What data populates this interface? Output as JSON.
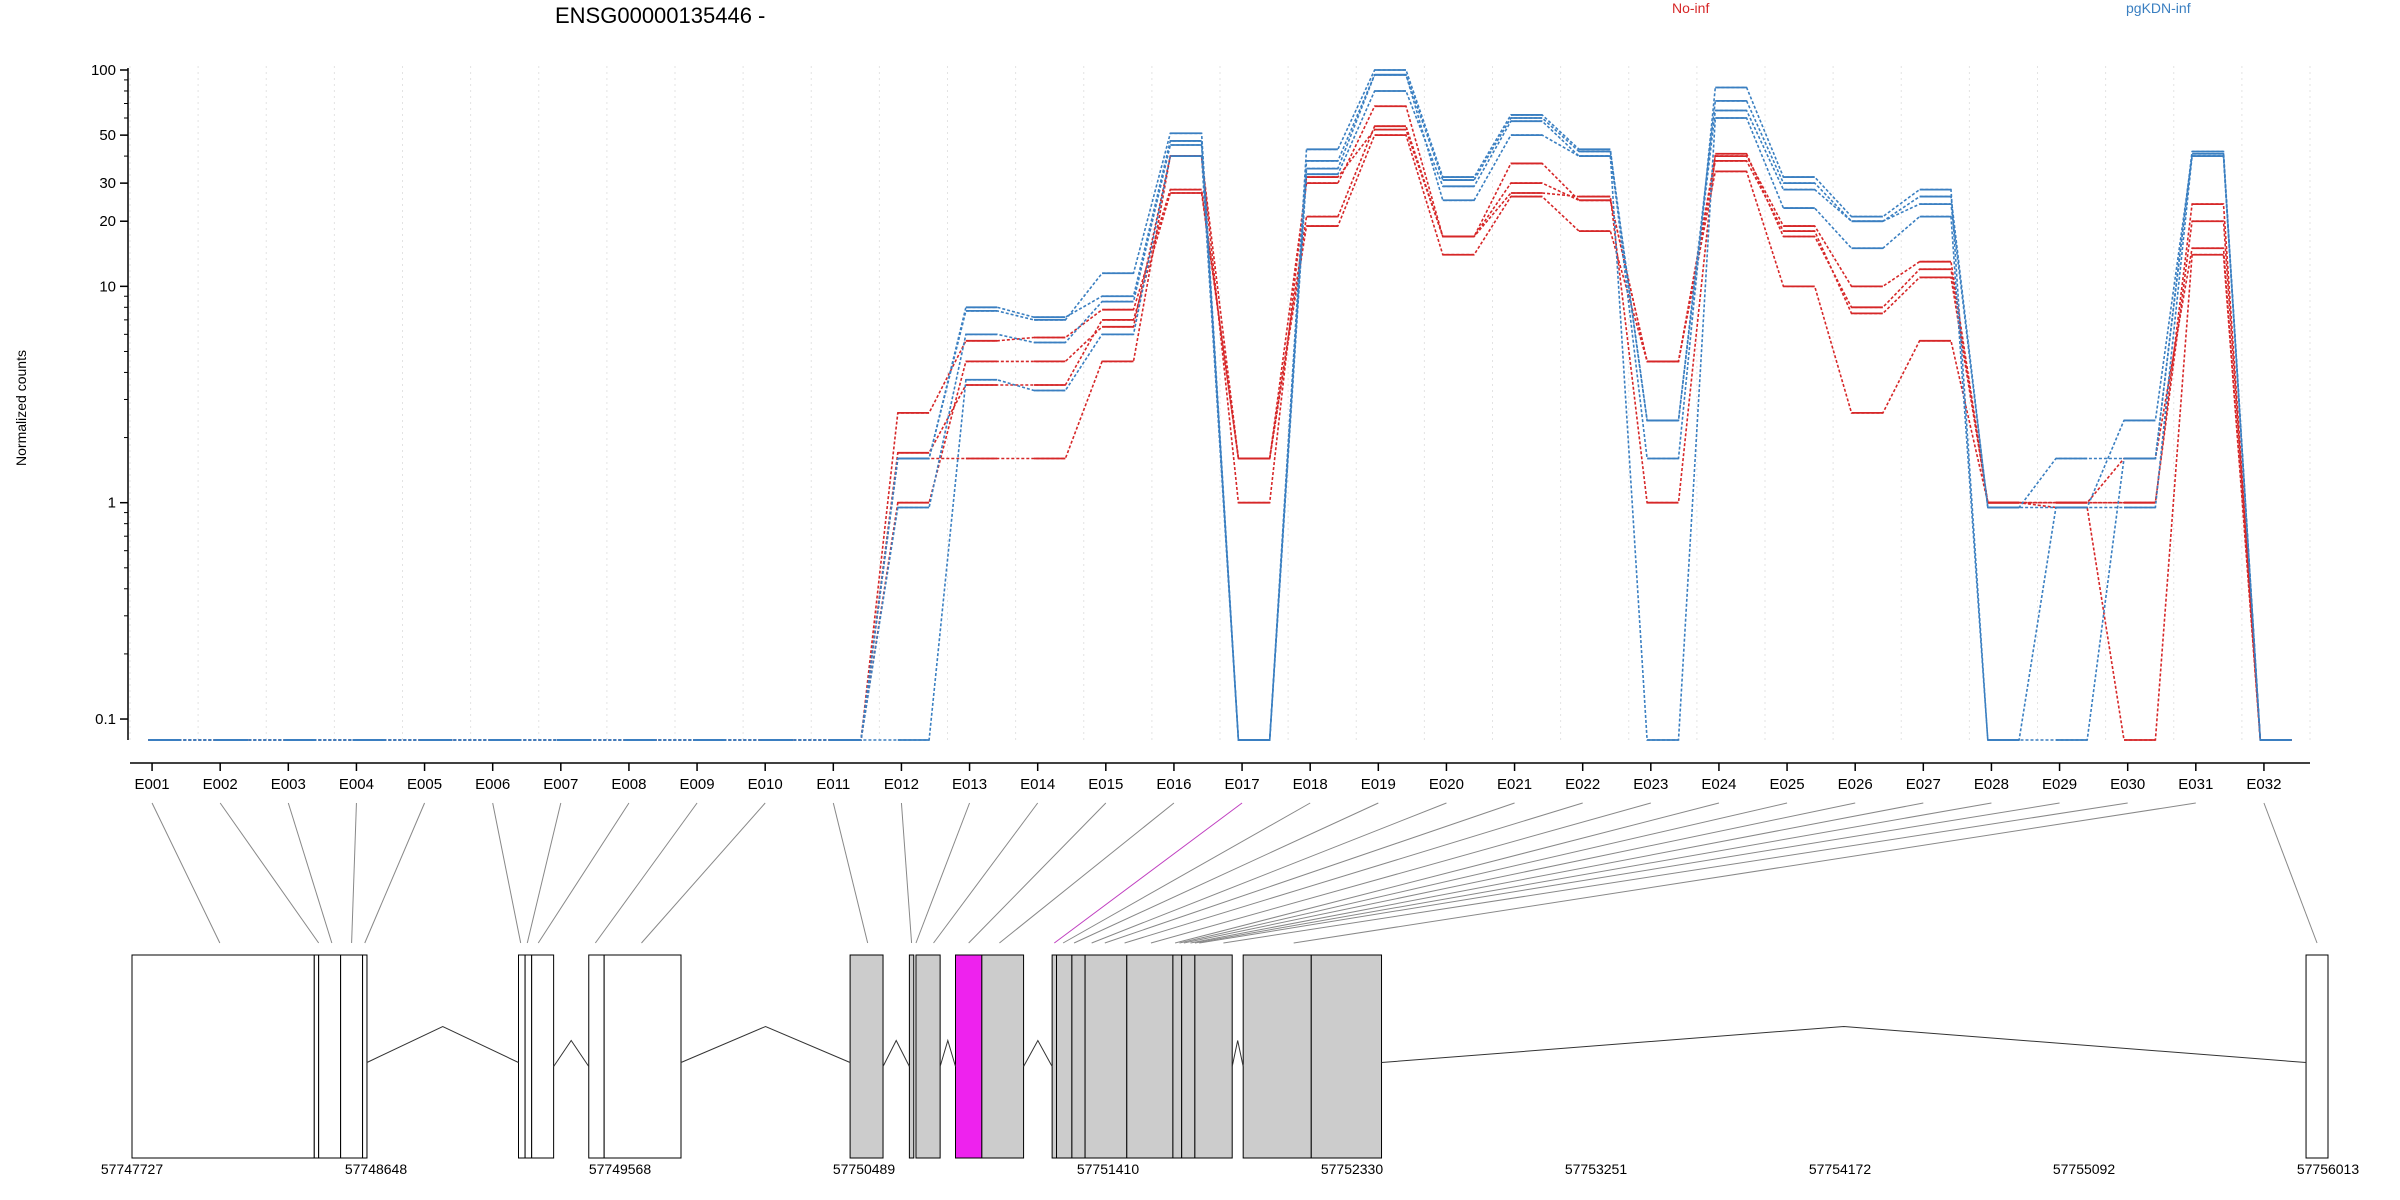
{
  "chart_data": {
    "type": "line",
    "title": "ENSG00000135446 -",
    "ylabel": "Normalized counts",
    "xlabel": "",
    "y_scale": "log",
    "ylim": [
      0.08,
      100
    ],
    "grid": "vertical dotted",
    "y_ticks": [
      {
        "value": 0.1,
        "label": "0.1"
      },
      {
        "value": 1,
        "label": "1"
      },
      {
        "value": 10,
        "label": "10"
      },
      {
        "value": 20,
        "label": "20"
      },
      {
        "value": 30,
        "label": "30"
      },
      {
        "value": 50,
        "label": "50"
      },
      {
        "value": 100,
        "label": "100"
      }
    ],
    "legend": [
      {
        "name": "No-inf",
        "color": "#d62728"
      },
      {
        "name": "pgKDN-inf",
        "color": "#3a7fc1"
      }
    ],
    "categories": [
      "E001",
      "E002",
      "E003",
      "E004",
      "E005",
      "E006",
      "E007",
      "E008",
      "E009",
      "E010",
      "E011",
      "E012",
      "E013",
      "E014",
      "E015",
      "E016",
      "E017",
      "E018",
      "E019",
      "E020",
      "E021",
      "E022",
      "E023",
      "E024",
      "E025",
      "E026",
      "E027",
      "E028",
      "E029",
      "E030",
      "E031",
      "E032"
    ],
    "highlight_category": "E017",
    "series": [
      {
        "group": "No-inf",
        "color": "#d62728",
        "values": [
          0.08,
          0.08,
          0.08,
          0.08,
          0.08,
          0.08,
          0.08,
          0.08,
          0.08,
          0.08,
          0.08,
          2.6,
          5.6,
          5.8,
          7.8,
          28,
          1.6,
          30,
          68,
          17,
          37,
          25,
          4.5,
          40,
          19,
          10,
          13,
          1,
          1,
          1,
          24,
          0.08
        ]
      },
      {
        "group": "No-inf",
        "color": "#d62728",
        "values": [
          0.08,
          0.08,
          0.08,
          0.08,
          0.08,
          0.08,
          0.08,
          0.08,
          0.08,
          0.08,
          0.08,
          1.7,
          3.5,
          3.5,
          7.0,
          27,
          1.6,
          21,
          55,
          17,
          30,
          25,
          4.5,
          38,
          18,
          7.5,
          11,
          1,
          1,
          1,
          20,
          0.08
        ]
      },
      {
        "group": "No-inf",
        "color": "#d62728",
        "values": [
          0.08,
          0.08,
          0.08,
          0.08,
          0.08,
          0.08,
          0.08,
          0.08,
          0.08,
          0.08,
          0.08,
          1.0,
          4.5,
          4.5,
          6.5,
          40,
          1.0,
          32,
          53,
          17,
          27,
          26,
          1.0,
          41,
          17,
          8,
          12,
          1,
          1,
          1.6,
          15,
          0.08
        ]
      },
      {
        "group": "No-inf",
        "color": "#d62728",
        "values": [
          0.08,
          0.08,
          0.08,
          0.08,
          0.08,
          0.08,
          0.08,
          0.08,
          0.08,
          0.08,
          0.08,
          1.6,
          1.6,
          1.6,
          4.5,
          40,
          1.6,
          19,
          50,
          14,
          26,
          18,
          4.5,
          34,
          10,
          2.6,
          5.6,
          1,
          0.95,
          0.08,
          14,
          0.08
        ]
      },
      {
        "group": "pgKDN-inf",
        "color": "#3a7fc1",
        "values": [
          0.08,
          0.08,
          0.08,
          0.08,
          0.08,
          0.08,
          0.08,
          0.08,
          0.08,
          0.08,
          0.08,
          1.6,
          7.7,
          7.0,
          11.5,
          51,
          0.08,
          43,
          100,
          32,
          62,
          43,
          1.6,
          83,
          32,
          21,
          28,
          0.08,
          0.08,
          1.6,
          41,
          0.08
        ]
      },
      {
        "group": "pgKDN-inf",
        "color": "#3a7fc1",
        "values": [
          0.08,
          0.08,
          0.08,
          0.08,
          0.08,
          0.08,
          0.08,
          0.08,
          0.08,
          0.08,
          0.08,
          1.6,
          8,
          7.2,
          9,
          47,
          0.08,
          38,
          95,
          31,
          60,
          42,
          2.4,
          72,
          30,
          20,
          26,
          0.95,
          1.6,
          1.6,
          42,
          0.08
        ]
      },
      {
        "group": "pgKDN-inf",
        "color": "#3a7fc1",
        "values": [
          0.08,
          0.08,
          0.08,
          0.08,
          0.08,
          0.08,
          0.08,
          0.08,
          0.08,
          0.08,
          0.08,
          0.95,
          6,
          5.5,
          8.5,
          45,
          0.08,
          33,
          80,
          29,
          58,
          40,
          2.4,
          65,
          28,
          20,
          24,
          0.95,
          0.95,
          2.4,
          40,
          0.08
        ]
      },
      {
        "group": "pgKDN-inf",
        "color": "#3a7fc1",
        "values": [
          0.08,
          0.08,
          0.08,
          0.08,
          0.08,
          0.08,
          0.08,
          0.08,
          0.08,
          0.08,
          0.08,
          0.08,
          3.7,
          3.3,
          6,
          40,
          0.08,
          35,
          95,
          25,
          50,
          40,
          0.08,
          60,
          23,
          15,
          21,
          0.08,
          0.95,
          0.95,
          40,
          0.08
        ]
      }
    ],
    "gene_model": {
      "coordinate_ticks": [
        "57747727",
        "57748648",
        "57749568",
        "57750489",
        "57751410",
        "57752330",
        "57753251",
        "57754172",
        "57755092",
        "57756013"
      ]
    }
  }
}
